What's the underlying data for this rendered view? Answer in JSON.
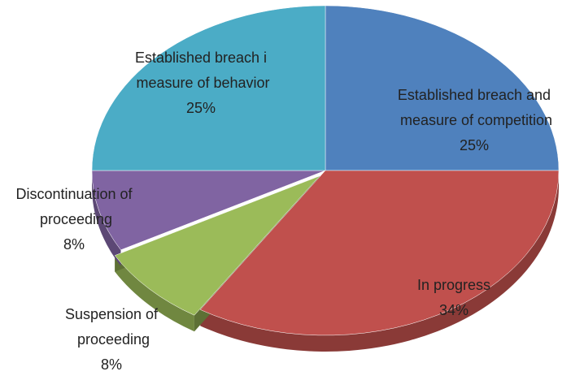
{
  "chart_data": {
    "type": "pie",
    "categories": [
      "Established breach and measure of competition",
      "In progress",
      "Suspension of proceeding",
      "Discontinuation of proceeding",
      "Established breach i measure of behavior"
    ],
    "values": [
      25,
      34,
      8,
      8,
      25
    ],
    "value_labels": [
      "25%",
      "34%",
      "8%",
      "8%",
      "25%"
    ],
    "colors": [
      "#4f81bd",
      "#c0504d",
      "#9bbb59",
      "#8064a2",
      "#4bacc6"
    ]
  }
}
